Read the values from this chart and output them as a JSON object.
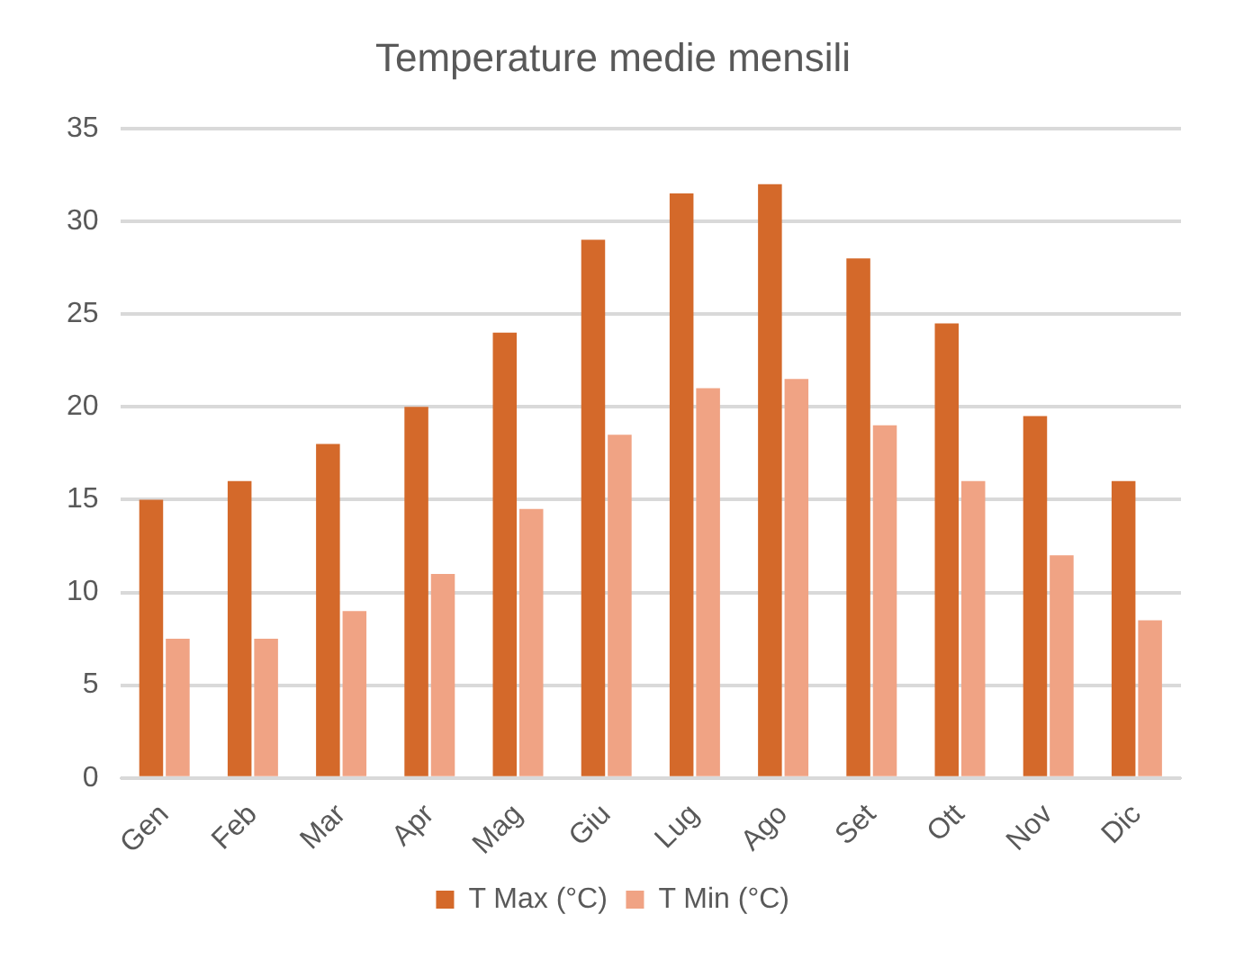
{
  "chart_data": {
    "type": "bar",
    "title": "Temperature medie mensili",
    "categories": [
      "Gen",
      "Feb",
      "Mar",
      "Apr",
      "Mag",
      "Giu",
      "Lug",
      "Ago",
      "Set",
      "Ott",
      "Nov",
      "Dic"
    ],
    "series": [
      {
        "name": "T Max (°C)",
        "color": "#d4692a",
        "values": [
          15,
          16,
          18,
          20,
          24,
          29,
          31.5,
          32,
          28,
          24.5,
          19.5,
          16
        ]
      },
      {
        "name": "T Min (°C)",
        "color": "#f0a384",
        "values": [
          7.5,
          7.5,
          9,
          11,
          14.5,
          18.5,
          21,
          21.5,
          19,
          16,
          12,
          8.5
        ]
      }
    ],
    "ylim": [
      0,
      35
    ],
    "yticks": [
      0,
      5,
      10,
      15,
      20,
      25,
      30,
      35
    ],
    "grid": "y",
    "legend": "bottom"
  }
}
